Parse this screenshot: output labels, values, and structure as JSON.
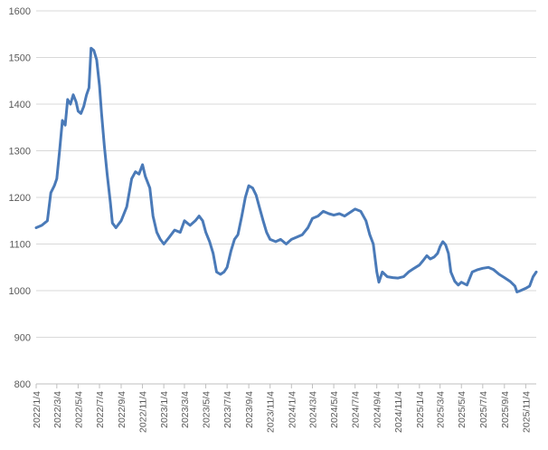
{
  "chart_data": {
    "type": "line",
    "title": "",
    "xlabel": "",
    "ylabel": "",
    "ylim": [
      800,
      1600
    ],
    "y_ticks": [
      800,
      900,
      1000,
      1100,
      1200,
      1300,
      1400,
      1500,
      1600
    ],
    "x_tick_labels": [
      "2022/1/4",
      "2022/3/4",
      "2022/5/4",
      "2022/7/4",
      "2022/9/4",
      "2022/11/4",
      "2023/1/4",
      "2023/3/4",
      "2023/5/4",
      "2023/7/4",
      "2023/9/4",
      "2023/11/4",
      "2024/1/4",
      "2024/3/4",
      "2024/5/4",
      "2024/7/4",
      "2024/9/4",
      "2024/11/4",
      "2025/1/4",
      "2025/3/4",
      "2025/5/4",
      "2025/7/4",
      "2025/9/4",
      "2025/11/4"
    ],
    "grid": true,
    "legend": "none",
    "colors": {
      "line": "#4a7ab8",
      "grid": "#d9d9d9",
      "axis": "#bfbfbf",
      "text": "#595959"
    },
    "series": [
      {
        "points": [
          [
            "2022/1/4",
            1135
          ],
          [
            "2022/1/20",
            1140
          ],
          [
            "2022/2/5",
            1150
          ],
          [
            "2022/2/15",
            1210
          ],
          [
            "2022/2/25",
            1225
          ],
          [
            "2022/3/4",
            1240
          ],
          [
            "2022/3/12",
            1300
          ],
          [
            "2022/3/20",
            1365
          ],
          [
            "2022/3/28",
            1355
          ],
          [
            "2022/4/4",
            1410
          ],
          [
            "2022/4/12",
            1400
          ],
          [
            "2022/4/20",
            1420
          ],
          [
            "2022/4/28",
            1405
          ],
          [
            "2022/5/4",
            1385
          ],
          [
            "2022/5/12",
            1380
          ],
          [
            "2022/5/20",
            1395
          ],
          [
            "2022/5/28",
            1420
          ],
          [
            "2022/6/4",
            1435
          ],
          [
            "2022/6/10",
            1520
          ],
          [
            "2022/6/18",
            1515
          ],
          [
            "2022/6/26",
            1495
          ],
          [
            "2022/7/4",
            1440
          ],
          [
            "2022/7/10",
            1380
          ],
          [
            "2022/7/18",
            1310
          ],
          [
            "2022/7/26",
            1250
          ],
          [
            "2022/8/4",
            1190
          ],
          [
            "2022/8/10",
            1145
          ],
          [
            "2022/8/20",
            1135
          ],
          [
            "2022/9/4",
            1150
          ],
          [
            "2022/9/20",
            1180
          ],
          [
            "2022/10/4",
            1240
          ],
          [
            "2022/10/15",
            1255
          ],
          [
            "2022/10/25",
            1250
          ],
          [
            "2022/11/4",
            1270
          ],
          [
            "2022/11/12",
            1245
          ],
          [
            "2022/11/25",
            1220
          ],
          [
            "2022/12/4",
            1160
          ],
          [
            "2022/12/15",
            1125
          ],
          [
            "2022/12/25",
            1110
          ],
          [
            "2023/1/4",
            1100
          ],
          [
            "2023/1/20",
            1115
          ],
          [
            "2023/2/4",
            1130
          ],
          [
            "2023/2/20",
            1125
          ],
          [
            "2023/3/4",
            1150
          ],
          [
            "2023/3/20",
            1140
          ],
          [
            "2023/4/4",
            1150
          ],
          [
            "2023/4/15",
            1160
          ],
          [
            "2023/4/25",
            1150
          ],
          [
            "2023/5/4",
            1125
          ],
          [
            "2023/5/15",
            1105
          ],
          [
            "2023/5/25",
            1080
          ],
          [
            "2023/6/4",
            1040
          ],
          [
            "2023/6/15",
            1035
          ],
          [
            "2023/6/25",
            1040
          ],
          [
            "2023/7/4",
            1050
          ],
          [
            "2023/7/15",
            1085
          ],
          [
            "2023/7/25",
            1110
          ],
          [
            "2023/8/4",
            1120
          ],
          [
            "2023/8/15",
            1160
          ],
          [
            "2023/8/25",
            1200
          ],
          [
            "2023/9/4",
            1225
          ],
          [
            "2023/9/15",
            1220
          ],
          [
            "2023/9/25",
            1205
          ],
          [
            "2023/10/4",
            1180
          ],
          [
            "2023/10/15",
            1150
          ],
          [
            "2023/10/25",
            1125
          ],
          [
            "2023/11/4",
            1110
          ],
          [
            "2023/11/20",
            1105
          ],
          [
            "2023/12/4",
            1110
          ],
          [
            "2023/12/20",
            1100
          ],
          [
            "2024/1/4",
            1110
          ],
          [
            "2024/1/20",
            1115
          ],
          [
            "2024/2/4",
            1120
          ],
          [
            "2024/2/20",
            1135
          ],
          [
            "2024/3/4",
            1155
          ],
          [
            "2024/3/20",
            1160
          ],
          [
            "2024/4/4",
            1170
          ],
          [
            "2024/4/20",
            1165
          ],
          [
            "2024/5/4",
            1162
          ],
          [
            "2024/5/20",
            1165
          ],
          [
            "2024/6/4",
            1160
          ],
          [
            "2024/6/20",
            1168
          ],
          [
            "2024/7/4",
            1175
          ],
          [
            "2024/7/20",
            1170
          ],
          [
            "2024/8/4",
            1150
          ],
          [
            "2024/8/15",
            1120
          ],
          [
            "2024/8/25",
            1100
          ],
          [
            "2024/9/4",
            1040
          ],
          [
            "2024/9/10",
            1018
          ],
          [
            "2024/9/20",
            1040
          ],
          [
            "2024/10/4",
            1030
          ],
          [
            "2024/10/20",
            1028
          ],
          [
            "2024/11/4",
            1027
          ],
          [
            "2024/11/20",
            1030
          ],
          [
            "2024/12/4",
            1040
          ],
          [
            "2024/12/20",
            1048
          ],
          [
            "2025/1/4",
            1055
          ],
          [
            "2025/1/15",
            1065
          ],
          [
            "2025/1/25",
            1075
          ],
          [
            "2025/2/4",
            1068
          ],
          [
            "2025/2/15",
            1072
          ],
          [
            "2025/2/25",
            1080
          ],
          [
            "2025/3/4",
            1095
          ],
          [
            "2025/3/12",
            1105
          ],
          [
            "2025/3/20",
            1098
          ],
          [
            "2025/3/28",
            1080
          ],
          [
            "2025/4/4",
            1040
          ],
          [
            "2025/4/15",
            1020
          ],
          [
            "2025/4/25",
            1012
          ],
          [
            "2025/5/4",
            1018
          ],
          [
            "2025/5/20",
            1012
          ],
          [
            "2025/6/4",
            1040
          ],
          [
            "2025/6/20",
            1045
          ],
          [
            "2025/7/4",
            1048
          ],
          [
            "2025/7/20",
            1050
          ],
          [
            "2025/8/4",
            1045
          ],
          [
            "2025/8/20",
            1035
          ],
          [
            "2025/9/4",
            1028
          ],
          [
            "2025/9/20",
            1020
          ],
          [
            "2025/10/4",
            1010
          ],
          [
            "2025/10/10",
            997
          ],
          [
            "2025/10/20",
            1000
          ],
          [
            "2025/11/4",
            1005
          ],
          [
            "2025/11/15",
            1010
          ],
          [
            "2025/11/25",
            1030
          ],
          [
            "2025/12/4",
            1040
          ]
        ]
      }
    ]
  }
}
